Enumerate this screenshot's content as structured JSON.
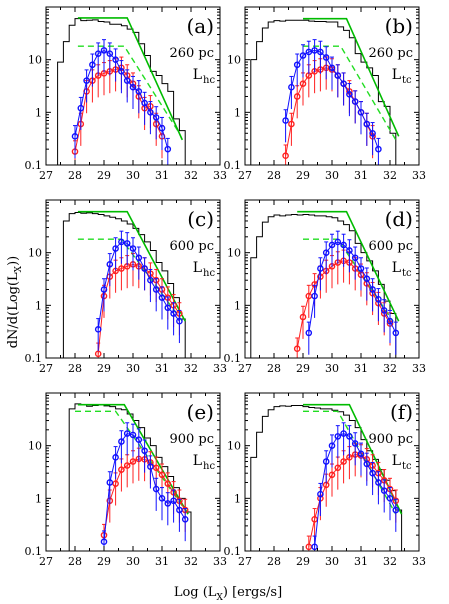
{
  "figure": {
    "xlabel": "Log (L_X) [ergs/s]",
    "ylabel": "dN/d(Log(L_X))"
  },
  "colors": {
    "hist": "#000000",
    "model": "#00bb00",
    "model_dash": "#22dd22",
    "blue": "#1010ff",
    "red": "#ff2020"
  },
  "chart_data": [
    {
      "type": "line",
      "panel": "(a)",
      "distance": "260 pc",
      "lum": "L",
      "lum_sub": "hc",
      "xlim": [
        27,
        33
      ],
      "ylim": [
        0.1,
        100
      ],
      "yscale": "log",
      "xticks": [
        27,
        28,
        29,
        30,
        31,
        32,
        33
      ],
      "yticks": [
        0.1,
        1,
        10
      ],
      "hist_edges": [
        27.4,
        27.6,
        27.8,
        28.0,
        28.2,
        28.4,
        28.6,
        28.8,
        29.0,
        29.2,
        29.4,
        29.6,
        29.8,
        30.0,
        30.2,
        30.4,
        30.6,
        30.8,
        31.0,
        31.2,
        31.4,
        31.6,
        31.8
      ],
      "hist_values": [
        9,
        22,
        45,
        60,
        55,
        56,
        57,
        53,
        52,
        47,
        47,
        44,
        38,
        33,
        20,
        12,
        6,
        5,
        3.5,
        2.5,
        0.75,
        0.45
      ],
      "model": [
        [
          28.1,
          62
        ],
        [
          29.8,
          62
        ],
        [
          31.7,
          0.3
        ]
      ],
      "model_dash": [
        [
          28.1,
          18
        ],
        [
          29.7,
          18
        ],
        [
          31.6,
          0.4
        ]
      ],
      "blue": {
        "x": [
          28.0,
          28.2,
          28.4,
          28.6,
          28.8,
          29.0,
          29.2,
          29.4,
          29.6,
          29.8,
          30.0,
          30.2,
          30.4,
          30.6,
          30.8,
          31.0,
          31.2
        ],
        "y": [
          0.35,
          1.2,
          4,
          8,
          13,
          15,
          13,
          10,
          6,
          4,
          3,
          2.5,
          1.5,
          1.0,
          0.8,
          0.5,
          0.2
        ]
      },
      "red": {
        "x": [
          28.0,
          28.2,
          28.4,
          28.6,
          28.8,
          29.0,
          29.2,
          29.4,
          29.6,
          29.8,
          30.0,
          30.2,
          30.4,
          30.6,
          30.8,
          31.0
        ],
        "y": [
          0.18,
          0.6,
          2.5,
          4,
          5,
          5.5,
          6,
          6.5,
          7,
          5,
          3.5,
          2.0,
          1.2,
          1.3,
          0.6,
          0.35
        ]
      }
    },
    {
      "type": "line",
      "panel": "(b)",
      "distance": "260 pc",
      "lum": "L",
      "lum_sub": "tc",
      "xlim": [
        27,
        33
      ],
      "ylim": [
        0.1,
        100
      ],
      "yscale": "log",
      "xticks": [
        27,
        28,
        29,
        30,
        31,
        32,
        33
      ],
      "yticks": [
        0.1,
        1,
        10
      ],
      "hist_edges": [
        27.2,
        27.4,
        27.6,
        27.8,
        28.0,
        28.2,
        28.4,
        28.6,
        28.8,
        29.0,
        29.2,
        29.4,
        29.6,
        29.8,
        30.0,
        30.2,
        30.4,
        30.6,
        30.8,
        31.0,
        31.2,
        31.4,
        31.6,
        31.8,
        32.0,
        32.2
      ],
      "hist_values": [
        10,
        22,
        40,
        52,
        55,
        54,
        56,
        56,
        56,
        56,
        54,
        53,
        53,
        52,
        52,
        42,
        36,
        26,
        13,
        9,
        7,
        5,
        1.6,
        1.3,
        0.4
      ],
      "model": [
        [
          29.0,
          60
        ],
        [
          30.5,
          60
        ],
        [
          32.3,
          0.35
        ]
      ],
      "model_dash": [
        [
          29.0,
          18
        ],
        [
          30.3,
          18
        ],
        [
          32.2,
          0.3
        ]
      ],
      "blue": {
        "x": [
          28.4,
          28.6,
          28.8,
          29.0,
          29.2,
          29.4,
          29.6,
          29.8,
          30.0,
          30.2,
          30.4,
          30.6,
          30.8,
          31.0,
          31.2,
          31.4,
          31.6
        ],
        "y": [
          0.7,
          3,
          8,
          12,
          14,
          15,
          14,
          11,
          7,
          5,
          3.5,
          2.2,
          1.6,
          1.0,
          0.6,
          0.4,
          0.2
        ]
      },
      "red": {
        "x": [
          28.4,
          28.6,
          28.8,
          29.0,
          29.2,
          29.4,
          29.6,
          29.8,
          30.0,
          30.2,
          30.4,
          30.6,
          30.8,
          31.0,
          31.2,
          31.4
        ],
        "y": [
          0.15,
          0.6,
          2,
          3.5,
          5,
          6,
          6.5,
          7,
          6.5,
          5,
          3.5,
          2.5,
          1.6,
          1.0,
          0.6,
          0.35
        ]
      }
    },
    {
      "type": "line",
      "panel": "(c)",
      "distance": "600 pc",
      "lum": "L",
      "lum_sub": "hc",
      "xlim": [
        27,
        33
      ],
      "ylim": [
        0.1,
        100
      ],
      "yscale": "log",
      "xticks": [
        27,
        28,
        29,
        30,
        31,
        32,
        33
      ],
      "yticks": [
        0.1,
        1,
        10
      ],
      "hist_edges": [
        27.6,
        27.8,
        28.0,
        28.2,
        28.4,
        28.6,
        28.8,
        29.0,
        29.2,
        29.4,
        29.6,
        29.8,
        30.0,
        30.2,
        30.4,
        30.6,
        30.8,
        31.0,
        31.2,
        31.4,
        31.6,
        31.8
      ],
      "hist_values": [
        40,
        55,
        58,
        56,
        57,
        55,
        53,
        50,
        47,
        44,
        40,
        35,
        29,
        22,
        16,
        11,
        6.5,
        4.5,
        2.6,
        1.4,
        0.55
      ],
      "model": [
        [
          28.1,
          60
        ],
        [
          29.8,
          60
        ],
        [
          31.8,
          0.5
        ]
      ],
      "model_dash": [
        [
          28.1,
          18
        ],
        [
          29.6,
          18
        ],
        [
          31.7,
          0.5
        ]
      ],
      "blue": {
        "x": [
          28.8,
          29.0,
          29.2,
          29.4,
          29.6,
          29.8,
          30.0,
          30.2,
          30.4,
          30.6,
          30.8,
          31.0,
          31.2,
          31.4,
          31.6
        ],
        "y": [
          0.35,
          2,
          6,
          12,
          16,
          15,
          12,
          8,
          5,
          3,
          2,
          1.4,
          0.9,
          0.7,
          0.5
        ]
      },
      "red": {
        "x": [
          28.8,
          29.0,
          29.2,
          29.4,
          29.6,
          29.8,
          30.0,
          30.2,
          30.4,
          30.6,
          30.8,
          31.0,
          31.2,
          31.4,
          31.6
        ],
        "y": [
          0.12,
          1.5,
          3.5,
          4.5,
          5,
          5.5,
          6,
          5.5,
          5,
          4,
          3,
          2,
          1.4,
          1.0,
          0.7
        ]
      }
    },
    {
      "type": "line",
      "panel": "(d)",
      "distance": "600 pc",
      "lum": "L",
      "lum_sub": "tc",
      "xlim": [
        27,
        33
      ],
      "ylim": [
        0.1,
        100
      ],
      "yscale": "log",
      "xticks": [
        27,
        28,
        29,
        30,
        31,
        32,
        33
      ],
      "yticks": [
        0.1,
        1,
        10
      ],
      "hist_edges": [
        27.2,
        27.4,
        27.6,
        27.8,
        28.0,
        28.2,
        28.4,
        28.6,
        28.8,
        29.0,
        29.2,
        29.4,
        29.6,
        29.8,
        30.0,
        30.2,
        30.4,
        30.6,
        30.8,
        31.0,
        31.2,
        31.4,
        31.6,
        31.8,
        32.0,
        32.2
      ],
      "hist_values": [
        8,
        20,
        38,
        48,
        52,
        50,
        52,
        53,
        52,
        53,
        52,
        50,
        50,
        48,
        46,
        40,
        34,
        26,
        15,
        10,
        7,
        4.5,
        2.5,
        1.2,
        0.7
      ],
      "model": [
        [
          28.8,
          60
        ],
        [
          30.5,
          60
        ],
        [
          32.3,
          0.5
        ]
      ],
      "model_dash": [
        [
          29.0,
          18
        ],
        [
          30.2,
          18
        ],
        [
          32.1,
          0.5
        ]
      ],
      "blue": {
        "x": [
          29.2,
          29.4,
          29.6,
          29.8,
          30.0,
          30.2,
          30.4,
          30.6,
          30.8,
          31.0,
          31.2,
          31.4,
          31.6,
          31.8,
          32.0,
          32.2
        ],
        "y": [
          0.3,
          1.5,
          5,
          10,
          14,
          16,
          14,
          11,
          8,
          5,
          3.2,
          2,
          1.3,
          0.8,
          0.5,
          0.3
        ]
      },
      "red": {
        "x": [
          28.8,
          29.0,
          29.2,
          29.4,
          29.6,
          29.8,
          30.0,
          30.2,
          30.4,
          30.6,
          30.8,
          31.0,
          31.2,
          31.4,
          31.6,
          31.8,
          32.0
        ],
        "y": [
          0.15,
          0.6,
          1.5,
          2.5,
          3.5,
          4.5,
          5.5,
          6.5,
          7,
          6.5,
          5,
          3.8,
          2.6,
          1.7,
          1.1,
          0.7,
          0.45
        ]
      }
    },
    {
      "type": "line",
      "panel": "(e)",
      "distance": "900 pc",
      "lum": "L",
      "lum_sub": "hc",
      "xlim": [
        27,
        33
      ],
      "ylim": [
        0.1,
        100
      ],
      "yscale": "log",
      "xticks": [
        27,
        28,
        29,
        30,
        31,
        32,
        33
      ],
      "yticks": [
        0.1,
        1,
        10
      ],
      "hist_edges": [
        27.8,
        28.0,
        28.2,
        28.4,
        28.6,
        28.8,
        29.0,
        29.2,
        29.4,
        29.6,
        29.8,
        30.0,
        30.2,
        30.4,
        30.6,
        30.8,
        31.0,
        31.2,
        31.4,
        31.6,
        31.8,
        32.0
      ],
      "hist_values": [
        50,
        62,
        60,
        56,
        58,
        60,
        57,
        55,
        50,
        48,
        40,
        30,
        22,
        14,
        10,
        6,
        4,
        2.6,
        1.6,
        1.0,
        0.55
      ],
      "model": [
        [
          28.1,
          60
        ],
        [
          29.7,
          60
        ],
        [
          31.9,
          0.5
        ]
      ],
      "model_dash": [
        [
          28.0,
          45
        ],
        [
          29.4,
          45
        ],
        [
          31.8,
          0.6
        ]
      ],
      "blue": {
        "x": [
          29.0,
          29.2,
          29.4,
          29.6,
          29.8,
          30.0,
          30.2,
          30.4,
          30.6,
          30.8,
          31.0,
          31.2,
          31.4,
          31.6,
          31.8
        ],
        "y": [
          0.15,
          2,
          6,
          12,
          17,
          16,
          13,
          8,
          4,
          1.5,
          1.0,
          0.8,
          0.9,
          0.6,
          0.4
        ]
      },
      "red": {
        "x": [
          29.0,
          29.2,
          29.4,
          29.6,
          29.8,
          30.0,
          30.2,
          30.4,
          30.6,
          30.8,
          31.0,
          31.2,
          31.4,
          31.6,
          31.8
        ],
        "y": [
          0.2,
          0.9,
          1.9,
          3.5,
          4.2,
          5,
          5.6,
          5.5,
          4.8,
          3.8,
          2.8,
          1.9,
          1.3,
          0.9,
          0.6
        ]
      }
    },
    {
      "type": "line",
      "panel": "(f)",
      "distance": "900 pc",
      "lum": "L",
      "lum_sub": "tc",
      "xlim": [
        27,
        33
      ],
      "ylim": [
        0.1,
        100
      ],
      "yscale": "log",
      "xticks": [
        27,
        28,
        29,
        30,
        31,
        32,
        33
      ],
      "yticks": [
        0.1,
        1,
        10
      ],
      "hist_edges": [
        27.2,
        27.4,
        27.6,
        27.8,
        28.0,
        28.2,
        28.4,
        28.6,
        28.8,
        29.0,
        29.2,
        29.4,
        29.6,
        29.8,
        30.0,
        30.2,
        30.4,
        30.6,
        30.8,
        31.0,
        31.2,
        31.4,
        31.6,
        31.8,
        32.0,
        32.2,
        32.4
      ],
      "hist_values": [
        6,
        18,
        36,
        48,
        55,
        57,
        56,
        58,
        58,
        55,
        53,
        52,
        50,
        50,
        47,
        44,
        38,
        30,
        22,
        13,
        8,
        5.5,
        3.5,
        2.2,
        1.4,
        0.6
      ],
      "model": [
        [
          29.0,
          60
        ],
        [
          30.6,
          60
        ],
        [
          32.4,
          0.5
        ]
      ],
      "model_dash": [
        [
          29.0,
          45
        ],
        [
          30.2,
          45
        ],
        [
          32.2,
          0.5
        ]
      ],
      "blue": {
        "x": [
          29.4,
          29.6,
          29.8,
          30.0,
          30.2,
          30.4,
          30.6,
          30.8,
          31.0,
          31.2,
          31.4,
          31.6,
          31.8,
          32.0,
          32.2
        ],
        "y": [
          0.12,
          1.2,
          5,
          10,
          15,
          17,
          15,
          11,
          7,
          4.5,
          3,
          2,
          1.4,
          1.0,
          0.6
        ]
      },
      "red": {
        "x": [
          29.2,
          29.4,
          29.6,
          29.8,
          30.0,
          30.2,
          30.4,
          30.6,
          30.8,
          31.0,
          31.2,
          31.4,
          31.6,
          31.8,
          32.0,
          32.2
        ],
        "y": [
          0.12,
          0.4,
          1.0,
          1.8,
          2.8,
          3.8,
          5,
          6,
          6.8,
          6.5,
          5.5,
          4.2,
          3,
          2.2,
          1.5,
          0.9
        ]
      }
    }
  ]
}
